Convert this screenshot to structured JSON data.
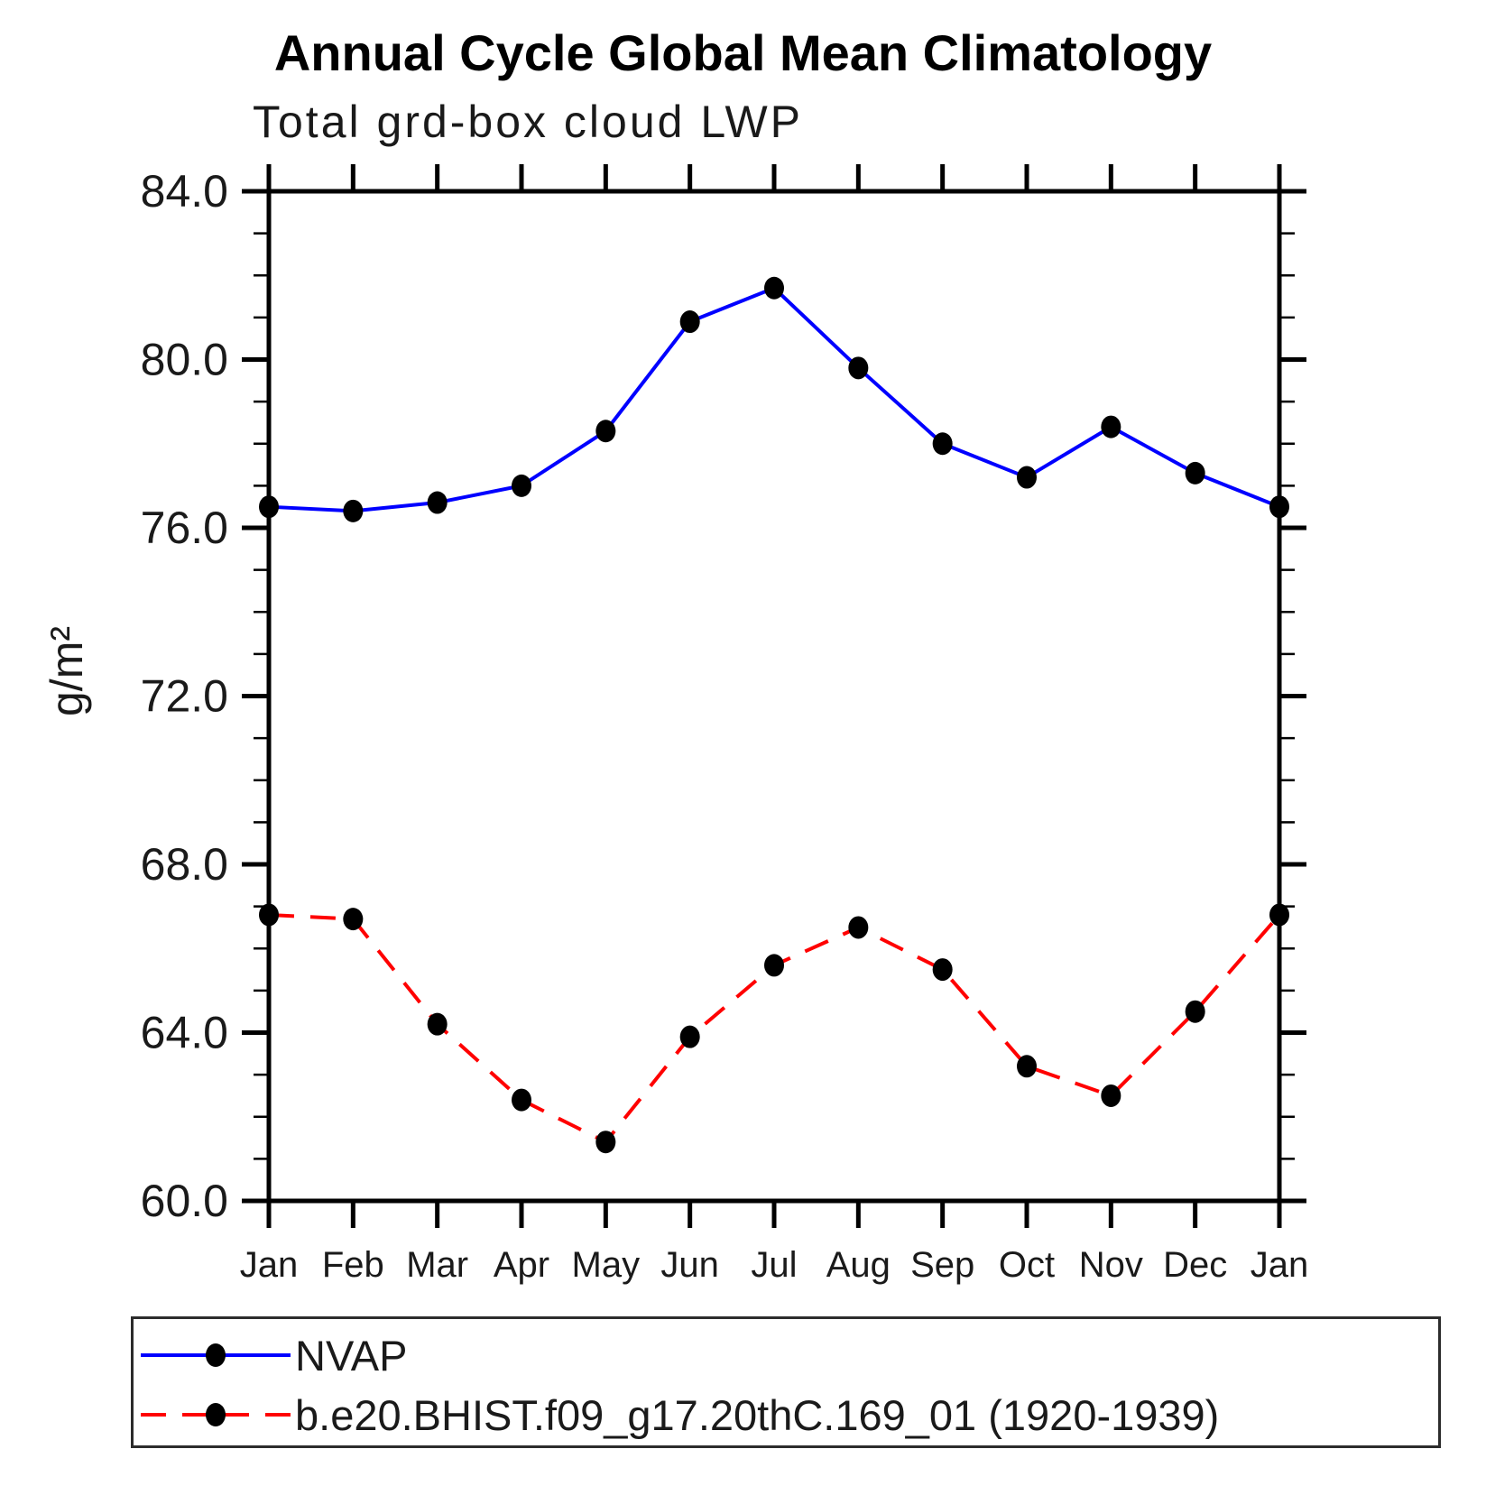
{
  "title": "Annual Cycle Global Mean Climatology",
  "subtitle": "Total grd-box cloud LWP",
  "ylabel": "g/m²",
  "colors": {
    "axis": "#000000",
    "marker": "#000000"
  },
  "chart_data": {
    "type": "line",
    "title": "Annual Cycle Global Mean Climatology",
    "subtitle": "Total grd-box cloud LWP",
    "xlabel": "",
    "ylabel": "g/m²",
    "categories": [
      "Jan",
      "Feb",
      "Mar",
      "Apr",
      "May",
      "Jun",
      "Jul",
      "Aug",
      "Sep",
      "Oct",
      "Nov",
      "Dec",
      "Jan"
    ],
    "ylim": [
      60.0,
      84.0
    ],
    "ytick_major": [
      60.0,
      64.0,
      68.0,
      72.0,
      76.0,
      80.0,
      84.0
    ],
    "ytick_labels": [
      "60.0",
      "64.0",
      "68.0",
      "72.0",
      "76.0",
      "80.0",
      "84.0"
    ],
    "y_minor_step": 1.0,
    "grid": false,
    "legend_position": "bottom",
    "series": [
      {
        "name": "NVAP",
        "color": "#0000ff",
        "style": "solid",
        "marker": "circle",
        "values": [
          76.5,
          76.4,
          76.6,
          77.0,
          78.3,
          80.9,
          81.7,
          79.8,
          78.0,
          77.2,
          78.4,
          77.3,
          76.5
        ]
      },
      {
        "name": "b.e20.BHIST.f09_g17.20thC.169_01 (1920-1939)",
        "color": "#ff0000",
        "style": "dashed",
        "marker": "circle",
        "values": [
          66.8,
          66.7,
          64.2,
          62.4,
          61.4,
          63.9,
          65.6,
          66.5,
          65.5,
          63.2,
          62.5,
          64.5,
          66.8
        ]
      }
    ]
  }
}
